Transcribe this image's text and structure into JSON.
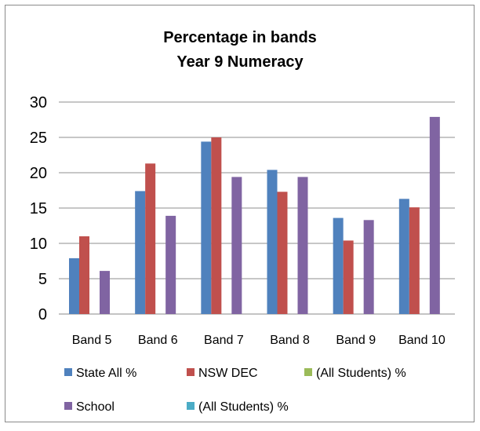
{
  "chart_data": {
    "type": "bar",
    "title": "Percentage in bands",
    "subtitle": "Year 9  Numeracy",
    "categories": [
      "Band 5",
      "Band 6",
      "Band 7",
      "Band 8",
      "Band 9",
      "Band 10"
    ],
    "ylim": [
      0,
      30
    ],
    "yticks": [
      0,
      5,
      10,
      15,
      20,
      25,
      30
    ],
    "grid": true,
    "legend_position": "bottom",
    "series": [
      {
        "name": "State All %",
        "color": "#4f81bd",
        "values": [
          7.9,
          17.4,
          24.4,
          20.4,
          13.6,
          16.3
        ]
      },
      {
        "name": "NSW DEC",
        "color": "#c0504d",
        "values": [
          11.0,
          21.3,
          25.0,
          17.3,
          10.4,
          15.1
        ]
      },
      {
        "name": "(All Students) %",
        "color": "#9bbb59",
        "values": [
          0,
          0,
          0,
          0,
          0,
          0
        ]
      },
      {
        "name": "School",
        "color": "#8064a2",
        "values": [
          6.1,
          13.9,
          19.4,
          19.4,
          13.3,
          27.9
        ]
      },
      {
        "name": "(All Students) %",
        "color": "#4bacc6",
        "values": [
          0,
          0,
          0,
          0,
          0,
          0
        ]
      }
    ]
  }
}
